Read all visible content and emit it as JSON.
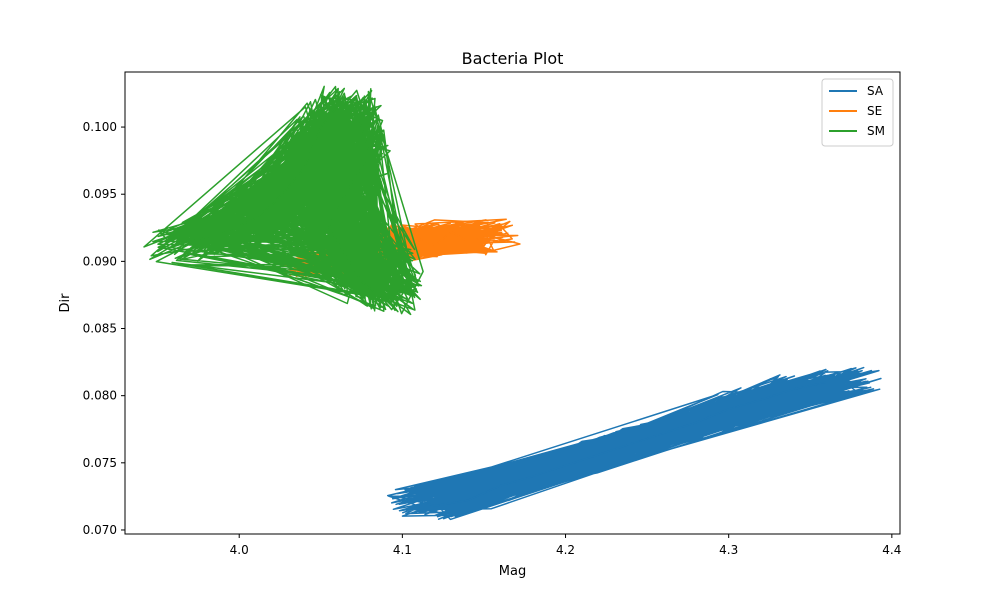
{
  "chart_data": {
    "type": "line",
    "title": "Bacteria Plot",
    "xlabel": "Mag",
    "ylabel": "Dir",
    "xlim": [
      3.93,
      4.405
    ],
    "ylim": [
      0.0697,
      0.1041
    ],
    "xticks": [
      4.0,
      4.1,
      4.2,
      4.3,
      4.4
    ],
    "xtick_labels": [
      "4.0",
      "4.1",
      "4.2",
      "4.3",
      "4.4"
    ],
    "yticks": [
      0.07,
      0.075,
      0.08,
      0.085,
      0.09,
      0.095,
      0.1
    ],
    "ytick_labels": [
      "0.070",
      "0.075",
      "0.080",
      "0.085",
      "0.090",
      "0.095",
      "0.100"
    ],
    "grid": false,
    "legend_position": "top-right",
    "series": [
      {
        "name": "SA",
        "color": "#1f77b4",
        "points": [
          [
            4.1,
            0.0724
          ],
          [
            4.12,
            0.0718
          ],
          [
            4.14,
            0.0722
          ],
          [
            4.16,
            0.0733
          ],
          [
            4.18,
            0.074
          ],
          [
            4.2,
            0.0748
          ],
          [
            4.22,
            0.0756
          ],
          [
            4.24,
            0.0764
          ],
          [
            4.26,
            0.0772
          ],
          [
            4.28,
            0.078
          ],
          [
            4.3,
            0.079
          ],
          [
            4.32,
            0.0797
          ],
          [
            4.34,
            0.0805
          ],
          [
            4.36,
            0.081
          ],
          [
            4.385,
            0.081
          ]
        ]
      },
      {
        "name": "SE",
        "color": "#ff7f0e",
        "points": [
          [
            4.03,
            0.0894
          ],
          [
            4.06,
            0.09
          ],
          [
            4.08,
            0.0908
          ],
          [
            4.09,
            0.0915
          ],
          [
            4.1,
            0.092
          ],
          [
            4.11,
            0.0917
          ],
          [
            4.12,
            0.0912
          ],
          [
            4.13,
            0.0922
          ],
          [
            4.14,
            0.0915
          ],
          [
            4.15,
            0.0918
          ],
          [
            4.165,
            0.0921
          ]
        ]
      },
      {
        "name": "SM",
        "color": "#2ca02c",
        "points": [
          [
            3.955,
            0.0909
          ],
          [
            3.97,
            0.0915
          ],
          [
            3.99,
            0.0921
          ],
          [
            4.01,
            0.0932
          ],
          [
            4.02,
            0.0942
          ],
          [
            4.03,
            0.0955
          ],
          [
            4.04,
            0.097
          ],
          [
            4.045,
            0.0985
          ],
          [
            4.05,
            0.1
          ],
          [
            4.06,
            0.1015
          ],
          [
            4.07,
            0.102
          ],
          [
            4.075,
            0.1
          ],
          [
            4.08,
            0.098
          ],
          [
            4.07,
            0.096
          ],
          [
            4.06,
            0.094
          ],
          [
            4.055,
            0.0925
          ],
          [
            4.065,
            0.0905
          ],
          [
            4.075,
            0.0885
          ],
          [
            4.09,
            0.087
          ],
          [
            4.1,
            0.088
          ],
          [
            4.095,
            0.09
          ]
        ]
      }
    ]
  }
}
